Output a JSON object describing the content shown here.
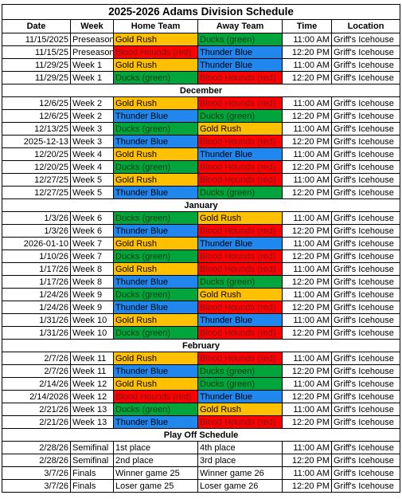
{
  "title": "2025-2026 Adams Division Schedule",
  "headers": [
    "Date",
    "Week",
    "Home Team",
    "Away Team",
    "Time",
    "Location"
  ],
  "team_colors": {
    "gold": "#ffc000",
    "red": "#ff0000",
    "blue": "#1f87ee",
    "green": "#00a63c"
  },
  "sections": [
    {
      "label": "",
      "rows": [
        {
          "date": "11/15/2025",
          "week": "Preseason",
          "home": "Gold Rush",
          "home_color": "gold",
          "away": "Ducks (green)",
          "away_color": "green",
          "time": "11:00 AM",
          "location": "Griff's Icehouse"
        },
        {
          "date": "11/15/25",
          "week": "Preseason",
          "home": "Blood Hounds (red)",
          "home_color": "red",
          "away": "Thunder Blue",
          "away_color": "blue",
          "time": "12:20 PM",
          "location": "Griff's Icehouse"
        },
        {
          "date": "11/29/25",
          "week": "Week 1",
          "home": "Gold Rush",
          "home_color": "gold",
          "away": "Thunder Blue",
          "away_color": "blue",
          "time": "11:00 AM",
          "location": "Griff's Icehouse"
        },
        {
          "date": "11/29/25",
          "week": "Week 1",
          "home": "Ducks (green)",
          "home_color": "green",
          "away": "Blood Hounds (red)",
          "away_color": "red",
          "time": "12:20 PM",
          "location": "Griff's Icehouse"
        }
      ]
    },
    {
      "label": "December",
      "rows": [
        {
          "date": "12/6/25",
          "week": "Week 2",
          "home": "Gold Rush",
          "home_color": "gold",
          "away": "Blood Hounds (red)",
          "away_color": "red",
          "time": "11:00 AM",
          "location": "Griff's Icehouse"
        },
        {
          "date": "12/6/25",
          "week": "Week 2",
          "home": "Thunder Blue",
          "home_color": "blue",
          "away": "Ducks (green)",
          "away_color": "green",
          "time": "12:20 PM",
          "location": "Griff's Icehouse"
        },
        {
          "date": "12/13/25",
          "week": "Week 3",
          "home": "Ducks (green)",
          "home_color": "green",
          "away": "Gold Rush",
          "away_color": "gold",
          "time": "11:00 AM",
          "location": "Griff's Icehouse"
        },
        {
          "date": "2025-12-13",
          "week": "Week 3",
          "home": "Thunder Blue",
          "home_color": "blue",
          "away": "Blood Hounds (red)",
          "away_color": "red",
          "time": "12:20 PM",
          "location": "Griff's Icehouse"
        },
        {
          "date": "12/20/25",
          "week": "Week 4",
          "home": "Gold Rush",
          "home_color": "gold",
          "away": "Thunder Blue",
          "away_color": "blue",
          "time": "11:00 AM",
          "location": "Griff's Icehouse"
        },
        {
          "date": "12/20/25",
          "week": "Week 4",
          "home": "Ducks (green)",
          "home_color": "green",
          "away": "Blood Hounds (red)",
          "away_color": "red",
          "time": "12:20 PM",
          "location": "Griff's Icehouse"
        },
        {
          "date": "12/27/25",
          "week": "Week 5",
          "home": "Gold Rush",
          "home_color": "gold",
          "away": "Blood Hounds (red)",
          "away_color": "red",
          "time": "11:00 AM",
          "location": "Griff's Icehouse"
        },
        {
          "date": "12/27/25",
          "week": "Week 5",
          "home": "Thunder Blue",
          "home_color": "blue",
          "away": "Ducks (green)",
          "away_color": "green",
          "time": "12:20 PM",
          "location": "Griff's Icehouse"
        }
      ]
    },
    {
      "label": "January",
      "rows": [
        {
          "date": "1/3/26",
          "week": "Week 6",
          "home": "Ducks (green)",
          "home_color": "green",
          "away": "Gold Rush",
          "away_color": "gold",
          "time": "11:00 AM",
          "location": "Griff's Icehouse"
        },
        {
          "date": "1/3/26",
          "week": "Week 6",
          "home": "Thunder Blue",
          "home_color": "blue",
          "away": "Blood Hounds (red)",
          "away_color": "red",
          "time": "12:20 PM",
          "location": "Griff's Icehouse"
        },
        {
          "date": "2026-01-10",
          "week": "Week 7",
          "home": "Gold Rush",
          "home_color": "gold",
          "away": "Thunder Blue",
          "away_color": "blue",
          "time": "11:00 AM",
          "location": "Griff's Icehouse"
        },
        {
          "date": "1/10/26",
          "week": "Week 7",
          "home": "Ducks (green)",
          "home_color": "green",
          "away": "Blood Hounds (red)",
          "away_color": "red",
          "time": "12:20 PM",
          "location": "Griff's Icehouse"
        },
        {
          "date": "1/17/26",
          "week": "Week 8",
          "home": "Gold Rush",
          "home_color": "gold",
          "away": "Blood Hounds (red)",
          "away_color": "red",
          "time": "11:00 AM",
          "location": "Griff's Icehouse"
        },
        {
          "date": "1/17/26",
          "week": "Week 8",
          "home": "Thunder Blue",
          "home_color": "blue",
          "away": "Ducks (green)",
          "away_color": "green",
          "time": "12:20 PM",
          "location": "Griff's Icehouse"
        },
        {
          "date": "1/24/26",
          "week": "Week 9",
          "home": "Ducks (green)",
          "home_color": "green",
          "away": "Gold Rush",
          "away_color": "gold",
          "time": "11:00 AM",
          "location": "Griff's Icehouse"
        },
        {
          "date": "1/24/26",
          "week": "Week 9",
          "home": "Thunder Blue",
          "home_color": "blue",
          "away": "Blood Hounds (red)",
          "away_color": "red",
          "time": "12:20 PM",
          "location": "Griff's Icehouse"
        },
        {
          "date": "1/31/26",
          "week": "Week 10",
          "home": "Gold Rush",
          "home_color": "gold",
          "away": "Thunder Blue",
          "away_color": "blue",
          "time": "11:00 AM",
          "location": "Griff's Icehouse"
        },
        {
          "date": "1/31/26",
          "week": "Week 10",
          "home": "Ducks (green)",
          "home_color": "green",
          "away": "Blood Hounds (red)",
          "away_color": "red",
          "time": "12:20 PM",
          "location": "Griff's Icehouse"
        }
      ]
    },
    {
      "label": "February",
      "rows": [
        {
          "date": "2/7/26",
          "week": "Week 11",
          "home": "Gold Rush",
          "home_color": "gold",
          "away": "Blood Hounds (red)",
          "away_color": "red",
          "time": "11:00 AM",
          "location": "Griff's Icehouse"
        },
        {
          "date": "2/7/26",
          "week": "Week 11",
          "home": "Thunder Blue",
          "home_color": "blue",
          "away": "Ducks (green)",
          "away_color": "green",
          "time": "12:20 PM",
          "location": "Griff's Icehouse"
        },
        {
          "date": "2/14/26",
          "week": "Week 12",
          "home": "Gold Rush",
          "home_color": "gold",
          "away": "Ducks (green)",
          "away_color": "green",
          "time": "11:00 AM",
          "location": "Griff's Icehouse"
        },
        {
          "date": "2/14/2026",
          "week": "Week 12",
          "home": "Blood Hounds (red)",
          "home_color": "red",
          "away": "Thunder Blue",
          "away_color": "blue",
          "time": "12:20 PM",
          "location": "Griff's Icehouse"
        },
        {
          "date": "2/21/26",
          "week": "Week 13",
          "home": "Ducks (green)",
          "home_color": "green",
          "away": "Gold Rush",
          "away_color": "gold",
          "time": "11:00 AM",
          "location": "Griff's Icehouse"
        },
        {
          "date": "2/21/26",
          "week": "Week 13",
          "home": "Thunder Blue",
          "home_color": "blue",
          "away": "Blood Hounds (red)",
          "away_color": "red",
          "time": "12:20 PM",
          "location": "Griff's Icehouse"
        }
      ]
    },
    {
      "label": "Play Off Schedule",
      "rows": [
        {
          "date": "2/28/26",
          "week": "Semifinal",
          "home": "1st place",
          "home_color": "",
          "away": "4th place",
          "away_color": "",
          "time": "11:00 AM",
          "location": "Griff's Icehouse"
        },
        {
          "date": "2/28/26",
          "week": "Semifinal",
          "home": "2nd place",
          "home_color": "",
          "away": "3rd place",
          "away_color": "",
          "time": "12:20 PM",
          "location": "Griff's Icehouse"
        },
        {
          "date": "3/7/26",
          "week": "Finals",
          "home": "Winner game 25",
          "home_color": "",
          "away": "Winner game 26",
          "away_color": "",
          "time": "11:00 AM",
          "location": "Griff's Icehouse"
        },
        {
          "date": "3/7/26",
          "week": "Finals",
          "home": "Loser game 25",
          "home_color": "",
          "away": "Loser game 26",
          "away_color": "",
          "time": "12:20 PM",
          "location": "Griff's Icehouse"
        }
      ]
    }
  ]
}
